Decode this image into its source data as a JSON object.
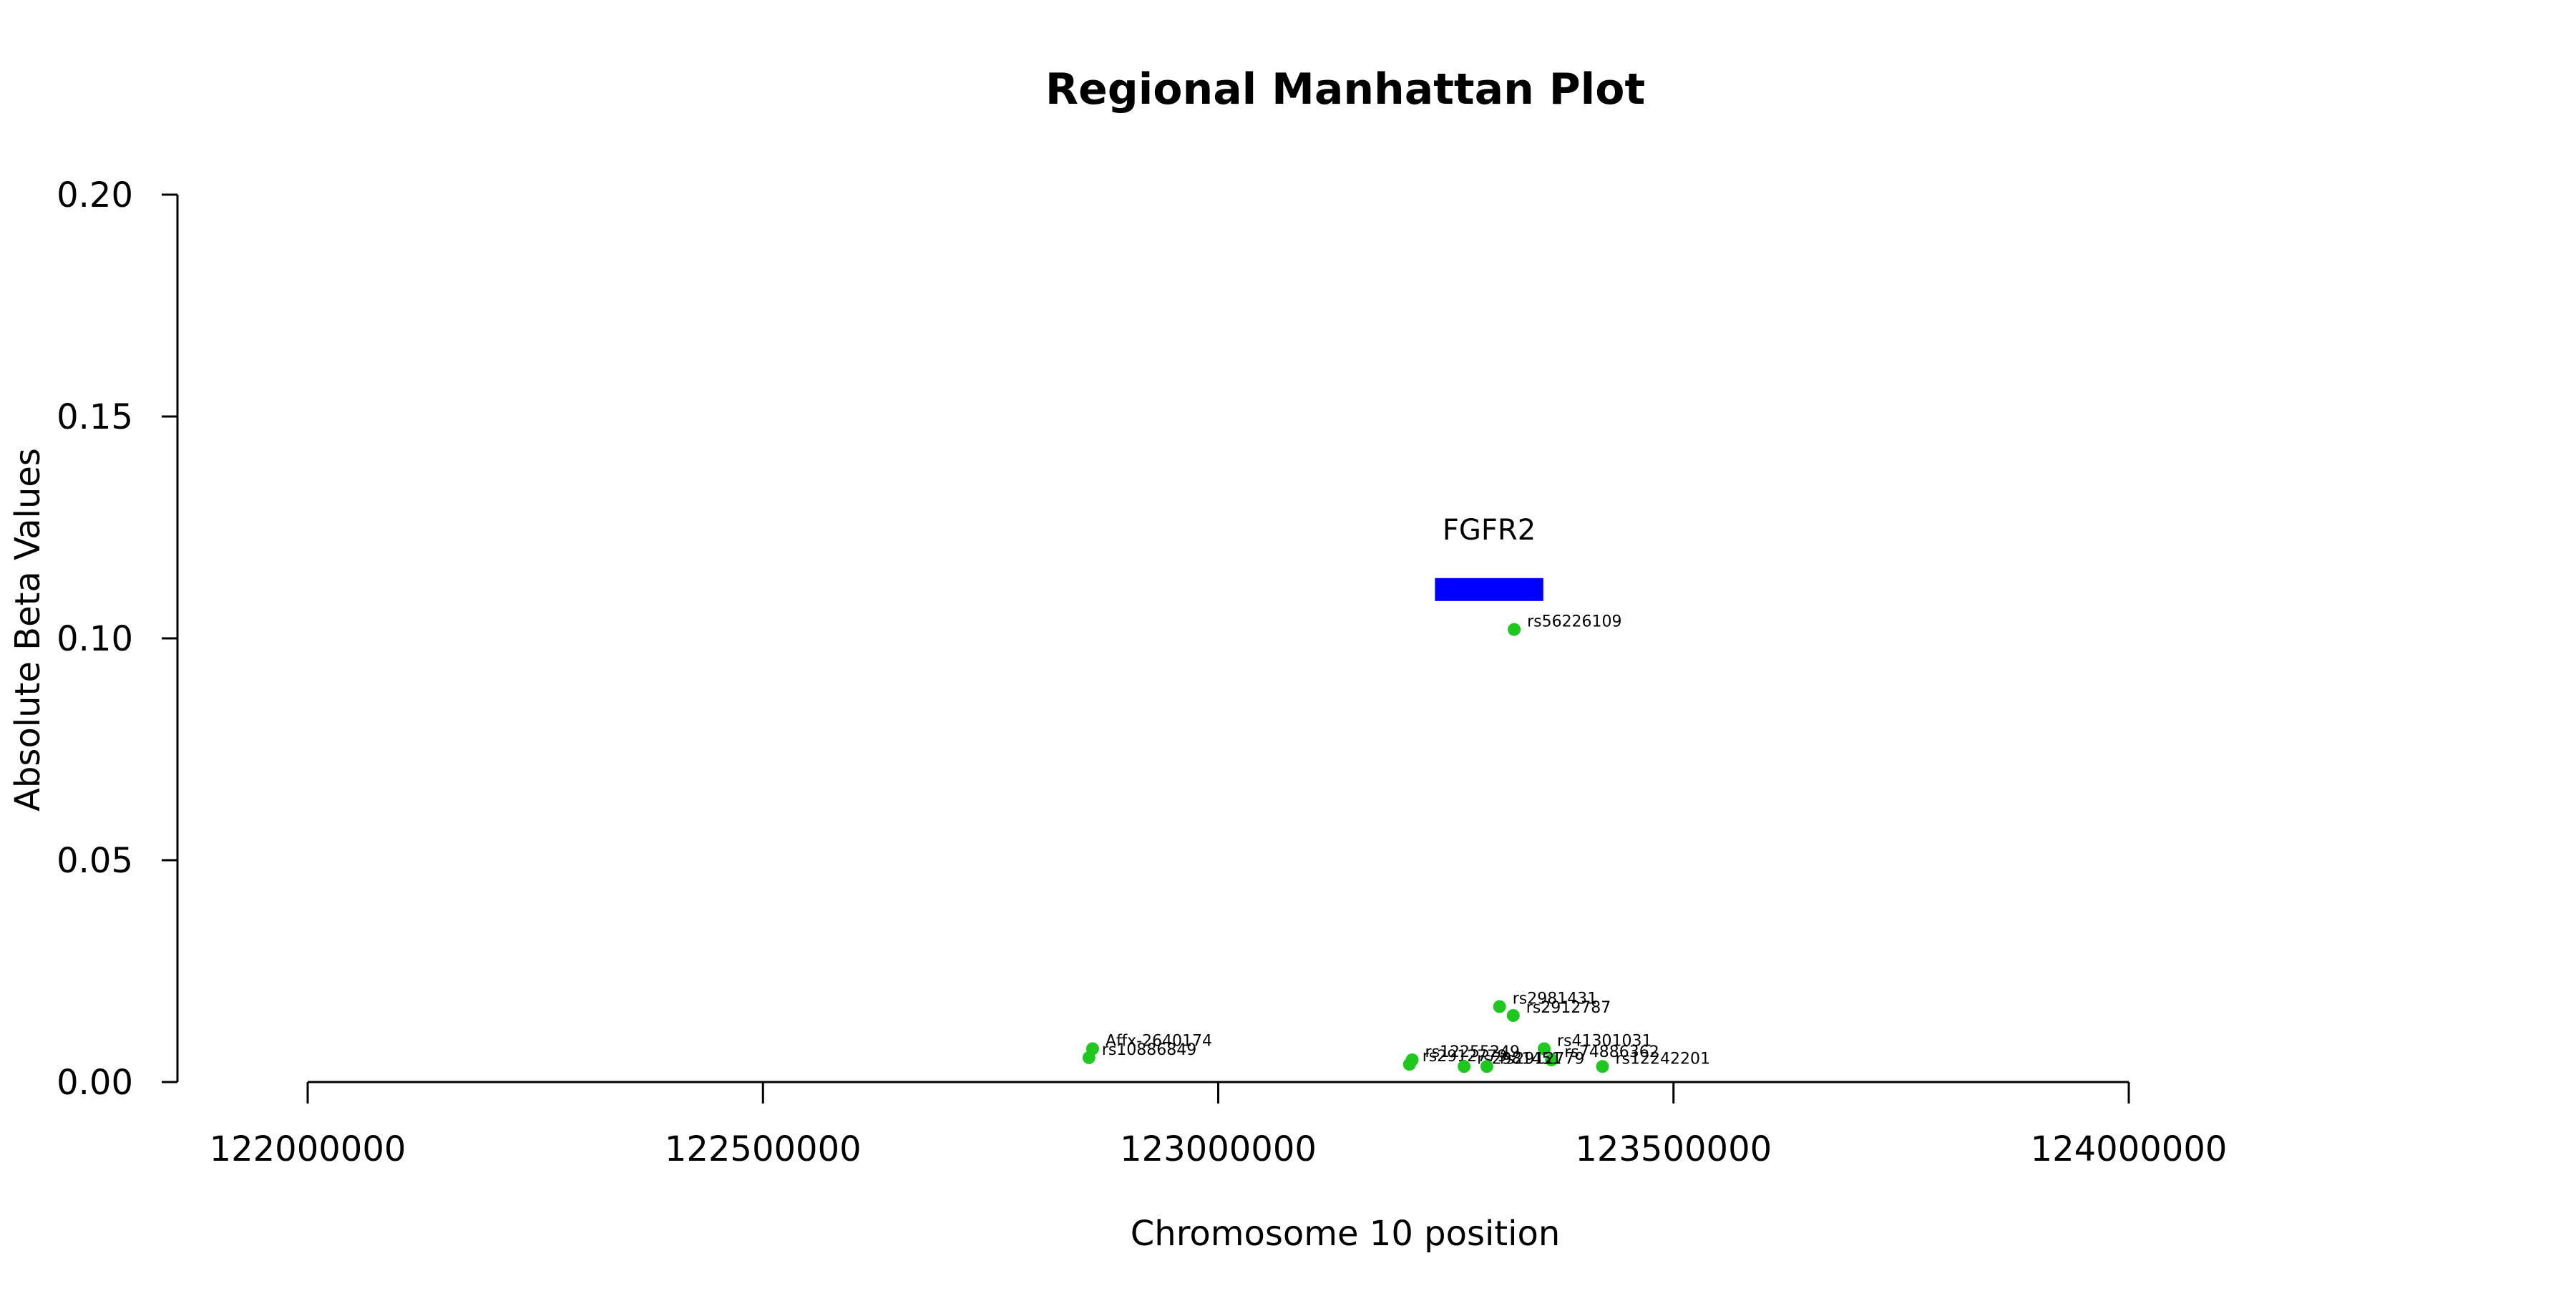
{
  "chart_data": {
    "type": "scatter",
    "title": "Regional Manhattan Plot",
    "xlabel": "Chromosome 10 position",
    "ylabel": "Absolute Beta Values",
    "xlim": [
      122000000,
      124000000
    ],
    "ylim": [
      0,
      0.2
    ],
    "xticks": [
      122000000,
      122500000,
      123000000,
      123500000,
      124000000
    ],
    "xtick_labels": [
      "122000000",
      "122500000",
      "123000000",
      "123500000",
      "124000000"
    ],
    "yticks": [
      0,
      0.05,
      0.1,
      0.15,
      0.2
    ],
    "ytick_labels": [
      "0.00",
      "0.05",
      "0.10",
      "0.15",
      "0.20"
    ],
    "grid": false,
    "point_color": "#1ec81e",
    "gene": {
      "name": "FGFR2",
      "start": 123238000,
      "end": 123357000,
      "y": 0.111,
      "color": "#0000ff"
    },
    "points": [
      {
        "label": "rs56226109",
        "x": 123325000,
        "y": 0.102
      },
      {
        "label": "rs2981431",
        "x": 123309000,
        "y": 0.017
      },
      {
        "label": "rs2912787",
        "x": 123324000,
        "y": 0.015
      },
      {
        "label": "Affx-2640174",
        "x": 122862000,
        "y": 0.0075
      },
      {
        "label": "rs10886849",
        "x": 122858000,
        "y": 0.0055
      },
      {
        "label": "rs41301031",
        "x": 123358000,
        "y": 0.0075
      },
      {
        "label": "rs74886362",
        "x": 123366000,
        "y": 0.005
      },
      {
        "label": "rs12255249",
        "x": 123213000,
        "y": 0.005
      },
      {
        "label": "rs2912779",
        "x": 123210000,
        "y": 0.004
      },
      {
        "label": "rs2981451",
        "x": 123270000,
        "y": 0.0035
      },
      {
        "label": "rs2912779",
        "x": 123295000,
        "y": 0.0035
      },
      {
        "label": "rs12242201",
        "x": 123422000,
        "y": 0.0035
      }
    ]
  }
}
